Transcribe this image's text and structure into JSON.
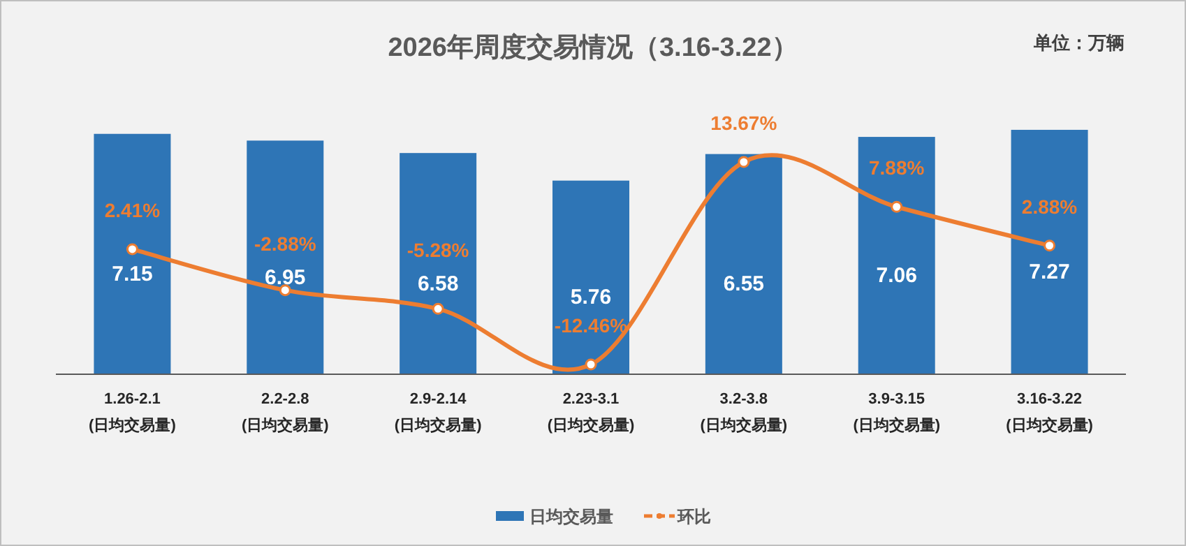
{
  "chart_data": {
    "type": "bar",
    "title": "2026年周度交易情况（3.16-3.22）",
    "annotations": [
      "单位：万辆"
    ],
    "categories": [
      "1.26-2.1\n(日均交易量)",
      "2.2-2.8\n(日均交易量)",
      "2.9-2.14\n(日均交易量)",
      "2.23-3.1\n(日均交易量)",
      "3.2-3.8\n(日均交易量)",
      "3.9-3.15\n(日均交易量)",
      "3.16-3.22\n(日均交易量)"
    ],
    "series": [
      {
        "name": "日均交易量",
        "color": "#2e75b6",
        "values": [
          7.15,
          6.95,
          6.58,
          5.76,
          6.55,
          7.06,
          7.27
        ],
        "value_labels": [
          "7.15",
          "6.95",
          "6.58",
          "5.76",
          "6.55",
          "7.06",
          "7.27"
        ]
      },
      {
        "name": "环比",
        "type": "line",
        "axis": "y2",
        "color": "#ed7d31",
        "marker": "circle",
        "values": [
          2.41,
          -2.88,
          -5.28,
          -12.46,
          13.67,
          7.88,
          2.88
        ],
        "value_labels": [
          "2.41%",
          "-2.88%",
          "-5.28%",
          "-12.46%",
          "13.67%",
          "7.88%",
          "2.88%"
        ]
      }
    ],
    "tick_labels": "x",
    "legend": "bottom"
  }
}
